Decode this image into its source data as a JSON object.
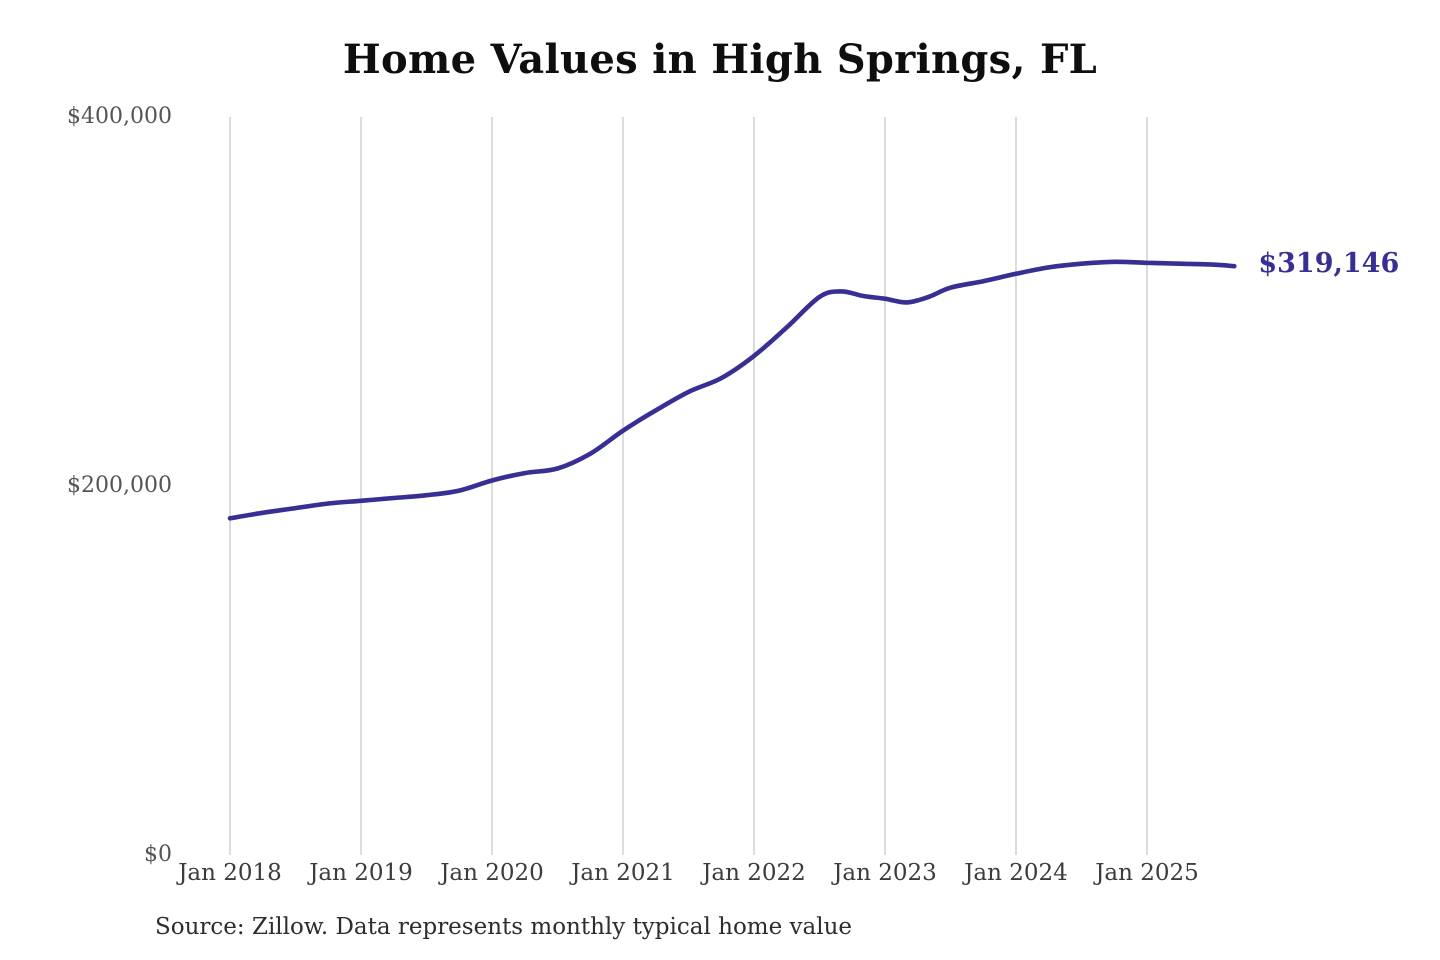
{
  "chart_data": {
    "type": "line",
    "title": "Home Values in High Springs, FL",
    "xlabel": "",
    "ylabel": "",
    "ylim": [
      0,
      400000
    ],
    "grid": "vertical-only",
    "legend": "none",
    "line_color": "#372f93",
    "gridline_color": "#c9c9c9",
    "end_label": "$319,146",
    "end_value": 319146,
    "yticks": [
      {
        "value": 0,
        "label": "$0"
      },
      {
        "value": 200000,
        "label": "$200,000"
      },
      {
        "value": 400000,
        "label": "$400,000"
      }
    ],
    "xticks": [
      "Jan 2018",
      "Jan 2019",
      "Jan 2020",
      "Jan 2021",
      "Jan 2022",
      "Jan 2023",
      "Jan 2024",
      "Jan 2025"
    ],
    "series": [
      {
        "name": "Monthly typical home value",
        "x": [
          "Jan 2018",
          "Apr 2018",
          "Jul 2018",
          "Oct 2018",
          "Jan 2019",
          "Apr 2019",
          "Jul 2019",
          "Oct 2019",
          "Jan 2020",
          "Apr 2020",
          "Jul 2020",
          "Oct 2020",
          "Jan 2021",
          "Apr 2021",
          "Jul 2021",
          "Oct 2021",
          "Jan 2022",
          "Apr 2022",
          "Jul 2022",
          "Sep 2022",
          "Nov 2022",
          "Jan 2023",
          "Mar 2023",
          "May 2023",
          "Jul 2023",
          "Oct 2023",
          "Jan 2024",
          "Apr 2024",
          "Jul 2024",
          "Oct 2024",
          "Jan 2025",
          "Apr 2025",
          "Jul 2025",
          "Sep 2025"
        ],
        "values": [
          182500,
          185500,
          188000,
          190500,
          192000,
          193500,
          195000,
          197500,
          203000,
          207000,
          209500,
          217500,
          230000,
          241000,
          251000,
          258500,
          270500,
          286000,
          302500,
          305500,
          303000,
          301500,
          299500,
          302500,
          307500,
          311000,
          315000,
          318500,
          320500,
          321500,
          321000,
          320500,
          320000,
          319146
        ]
      }
    ],
    "source_note": "Source: Zillow. Data represents monthly typical home value"
  },
  "colors": {
    "background": "#ffffff",
    "accent_line": "#372f93",
    "gridline": "#c9c9c9",
    "title_text": "#0e0e0e",
    "y_tick_text": "#545454",
    "x_tick_text": "#3c3c3c",
    "source_text": "#2d2d2d"
  }
}
